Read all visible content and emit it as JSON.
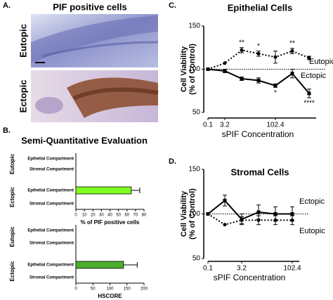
{
  "panels": {
    "a": {
      "label": "A.",
      "title": "PIF positive cells",
      "rows": [
        "Eutopic",
        "Ectopic"
      ]
    },
    "b": {
      "label": "B.",
      "title": "Semi-Quantitative Evaluation"
    },
    "c": {
      "label": "C."
    },
    "d": {
      "label": "D."
    }
  },
  "chart_data": [
    {
      "type": "hbar",
      "groups": [
        "Eutopic",
        "Ectopic"
      ],
      "categories": [
        "Epthelial Compartment",
        "Stromal Compartment",
        "Epthelial Compartment",
        "Stromal Compartment"
      ],
      "values": [
        0,
        0,
        65,
        0
      ],
      "errors": [
        0,
        0,
        10,
        0
      ],
      "color": "#80ff20",
      "xlim": [
        0,
        80
      ],
      "xticks": [
        0,
        10,
        20,
        30,
        40,
        50,
        60,
        70,
        80
      ],
      "xlabel": "% of PIF positive cells"
    },
    {
      "type": "hbar",
      "groups": [
        "Eutopic",
        "Ectopic"
      ],
      "categories": [
        "Epthelial Compartment",
        "Stromal Compartment",
        "Epthelial Compartment",
        "Stromal Compartment"
      ],
      "values": [
        0,
        0,
        140,
        0
      ],
      "errors": [
        0,
        0,
        40,
        0
      ],
      "color": "#4cae2c",
      "xlim": [
        0,
        200
      ],
      "xticks": [
        0,
        50,
        100,
        150,
        200
      ],
      "xlabel": "HSCORE"
    },
    {
      "type": "line",
      "title": "Epithelial Cells",
      "ylabel": [
        "Cell Viability",
        "(% of Control)"
      ],
      "xlabel": "sPIF Concentration",
      "categories": [
        "0.1",
        "3.2",
        null,
        null,
        "102.4",
        null,
        null
      ],
      "ylim": [
        50,
        150
      ],
      "yticks": [
        50,
        100,
        150
      ],
      "hline": 100,
      "series": [
        {
          "name": "Eutopic",
          "color": "#000000",
          "dash": true,
          "marker": "circle",
          "values": [
            100,
            107,
            122,
            118,
            114,
            121,
            113
          ],
          "errors": [
            0,
            0,
            3,
            3,
            7,
            3,
            2
          ],
          "significance": [
            null,
            null,
            "**",
            "*",
            null,
            "**",
            null
          ]
        },
        {
          "name": "Ectopic",
          "color": "#000000",
          "dash": false,
          "marker": "square",
          "values": [
            100,
            98,
            89,
            87,
            81,
            95,
            72
          ],
          "errors": [
            0,
            2,
            2,
            3,
            2,
            5,
            5
          ],
          "significance": [
            null,
            null,
            null,
            null,
            "*",
            null,
            "****"
          ]
        }
      ]
    },
    {
      "type": "line",
      "title": "Stromal Cells",
      "ylabel": [
        "Cell Viability",
        "(% of Control)"
      ],
      "xlabel": "sPIF Concentration",
      "categories": [
        "0.1",
        null,
        "3.2",
        null,
        null,
        "102.4"
      ],
      "ylim": [
        50,
        150
      ],
      "yticks": [
        50,
        100,
        150
      ],
      "hline": 100,
      "series": [
        {
          "name": "Ectopic",
          "color": "#000000",
          "dash": false,
          "marker": "square",
          "values": [
            100,
            115,
            94,
            102,
            100,
            100
          ],
          "errors": [
            0,
            6,
            6,
            8,
            8,
            8
          ]
        },
        {
          "name": "Eutopic",
          "color": "#000000",
          "dash": true,
          "marker": "circle",
          "values": [
            100,
            88,
            93,
            93,
            93,
            93
          ],
          "errors": [
            0,
            0,
            4,
            5,
            5,
            5
          ]
        }
      ]
    }
  ]
}
